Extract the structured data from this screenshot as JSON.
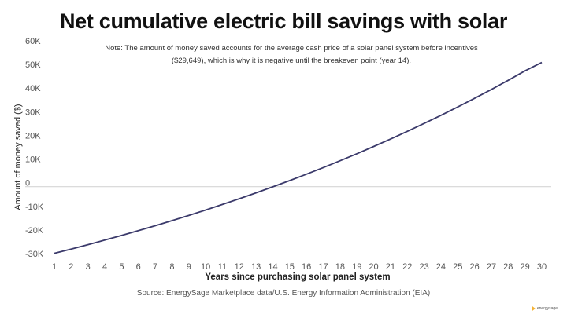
{
  "chart_data": {
    "type": "line",
    "title": "Net cumulative electric bill savings with solar",
    "subtitle": "Note: The amount of money saved accounts for the average cash price of a solar panel system before incentives ($29,649), which is why it is negative until the breakeven point (year 14).",
    "xlabel": "Years since purchasing solar panel system",
    "ylabel": "Amount of money saved ($)",
    "x": [
      1,
      2,
      3,
      4,
      5,
      6,
      7,
      8,
      9,
      10,
      11,
      12,
      13,
      14,
      15,
      16,
      17,
      18,
      19,
      20,
      21,
      22,
      23,
      24,
      25,
      26,
      27,
      28,
      29,
      30
    ],
    "series": [
      {
        "name": "Net cumulative savings",
        "color": "#3b3a6b",
        "values": [
          -28200,
          -26400,
          -24550,
          -22640,
          -20670,
          -18640,
          -16550,
          -14400,
          -12190,
          -9910,
          -7560,
          -5140,
          -2650,
          -90,
          2550,
          5270,
          8070,
          10950,
          13920,
          16980,
          20130,
          23370,
          26710,
          30150,
          33690,
          37340,
          41100,
          44970,
          48960,
          52500
        ]
      }
    ],
    "xticks": [
      "1",
      "2",
      "3",
      "4",
      "5",
      "6",
      "7",
      "8",
      "9",
      "10",
      "11",
      "12",
      "13",
      "14",
      "15",
      "16",
      "17",
      "18",
      "19",
      "20",
      "21",
      "22",
      "23",
      "24",
      "25",
      "26",
      "27",
      "28",
      "29",
      "30"
    ],
    "yticks": [
      {
        "value": 60000,
        "label": "60K"
      },
      {
        "value": 50000,
        "label": "50K"
      },
      {
        "value": 40000,
        "label": "40K"
      },
      {
        "value": 30000,
        "label": "30K"
      },
      {
        "value": 20000,
        "label": "20K"
      },
      {
        "value": 10000,
        "label": "10K"
      },
      {
        "value": 0,
        "label": "0"
      },
      {
        "value": -10000,
        "label": "-10K"
      },
      {
        "value": -20000,
        "label": "-20K"
      },
      {
        "value": -30000,
        "label": "-30K"
      }
    ],
    "ylim": [
      -30000,
      60000
    ],
    "xlim": [
      1,
      30
    ],
    "grid": "zero-line only",
    "legend": "none",
    "source": "Source: EnergySage Marketplace data/U.S. Energy Information Administration (EIA)",
    "brand": "energysage"
  }
}
